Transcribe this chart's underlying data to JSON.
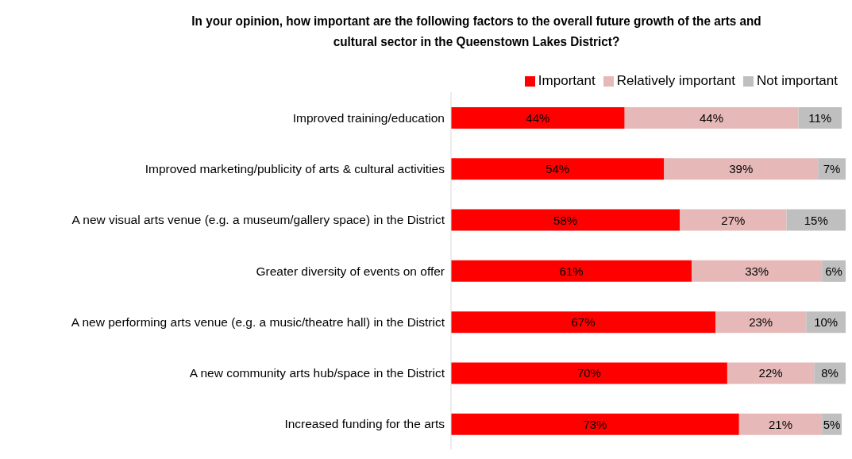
{
  "chart_data": {
    "type": "bar",
    "orientation": "horizontal",
    "stacked": true,
    "title": "In your opinion, how important are the following factors to the overall future growth of the arts and cultural sector in the Queenstown Lakes District?",
    "categories": [
      "Improved training/education",
      "Improved marketing/publicity of arts & cultural activities",
      "A new visual arts venue (e.g. a museum/gallery space) in the District",
      "Greater diversity of events on offer",
      "A new performing arts venue (e.g. a music/theatre hall) in the District",
      "A new community arts hub/space in the District",
      "Increased funding for the arts"
    ],
    "series": [
      {
        "name": "Important",
        "color": "#ff0000",
        "values": [
          44,
          54,
          58,
          61,
          67,
          70,
          73
        ],
        "value_labels": [
          "44%",
          "54%",
          "58%",
          "61%",
          "67%",
          "70%",
          "73%"
        ]
      },
      {
        "name": "Relatively important",
        "color": "#e6b9b8",
        "values": [
          44,
          39,
          27,
          33,
          23,
          22,
          21
        ],
        "value_labels": [
          "44%",
          "39%",
          "27%",
          "33%",
          "23%",
          "22%",
          "21%"
        ]
      },
      {
        "name": "Not important",
        "color": "#bfbfbf",
        "values": [
          11,
          7,
          15,
          6,
          10,
          8,
          5
        ],
        "value_labels": [
          "11%",
          "7%",
          "15%",
          "6%",
          "10%",
          "8%",
          "5%"
        ]
      }
    ],
    "legend": "top right",
    "grid": false
  }
}
